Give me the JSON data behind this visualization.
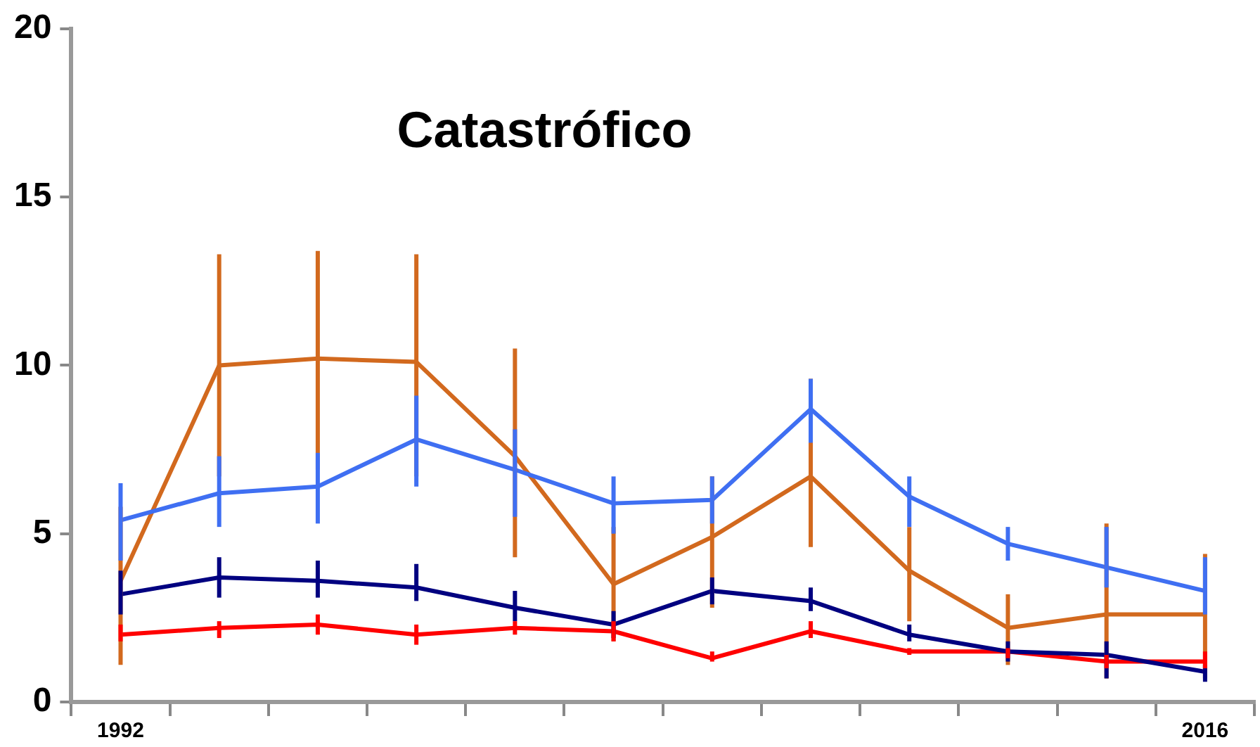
{
  "chart_data": {
    "type": "line",
    "title": "Catastrófico",
    "categories": [
      "1992",
      null,
      null,
      null,
      null,
      null,
      null,
      null,
      null,
      null,
      null,
      "2016"
    ],
    "series": [
      {
        "color": "#3f6ff2",
        "values": [
          5.4,
          6.2,
          6.4,
          7.8,
          6.9,
          5.9,
          6.0,
          8.7,
          6.1,
          4.7,
          4.0,
          3.3
        ],
        "errors": [
          [
            4.2,
            6.5
          ],
          [
            5.2,
            7.3
          ],
          [
            5.3,
            7.4
          ],
          [
            6.4,
            9.1
          ],
          [
            5.5,
            8.1
          ],
          [
            5.0,
            6.7
          ],
          [
            5.3,
            6.7
          ],
          [
            7.7,
            9.6
          ],
          [
            5.2,
            6.7
          ],
          [
            4.2,
            5.2
          ],
          [
            3.4,
            5.2
          ],
          [
            2.6,
            4.3
          ]
        ]
      },
      {
        "color": "#d2691e",
        "values": [
          3.6,
          10.0,
          10.2,
          10.1,
          7.3,
          3.5,
          4.9,
          6.7,
          3.9,
          2.2,
          2.6,
          2.6
        ],
        "errors": [
          [
            1.1,
            5.8
          ],
          [
            6.7,
            13.3
          ],
          [
            6.9,
            13.4
          ],
          [
            6.7,
            13.3
          ],
          [
            4.3,
            10.5
          ],
          [
            1.8,
            5.2
          ],
          [
            2.8,
            6.7
          ],
          [
            4.6,
            9.6
          ],
          [
            2.4,
            5.2
          ],
          [
            1.1,
            3.2
          ],
          [
            0.7,
            5.3
          ],
          [
            0.7,
            4.4
          ]
        ]
      },
      {
        "color": "#000080",
        "values": [
          3.2,
          3.7,
          3.6,
          3.4,
          2.8,
          2.3,
          3.3,
          3.0,
          2.0,
          1.5,
          1.4,
          0.9
        ],
        "errors": [
          [
            2.6,
            3.9
          ],
          [
            3.1,
            4.3
          ],
          [
            3.1,
            4.2
          ],
          [
            3.0,
            4.1
          ],
          [
            2.4,
            3.3
          ],
          [
            1.9,
            2.7
          ],
          [
            2.9,
            3.7
          ],
          [
            2.7,
            3.4
          ],
          [
            1.8,
            2.3
          ],
          [
            1.2,
            1.8
          ],
          [
            0.7,
            1.8
          ],
          [
            0.6,
            1.1
          ]
        ]
      },
      {
        "color": "#ff0000",
        "values": [
          2.0,
          2.2,
          2.3,
          2.0,
          2.2,
          2.1,
          1.3,
          2.1,
          1.5,
          1.5,
          1.2,
          1.2
        ],
        "errors": [
          [
            1.8,
            2.3
          ],
          [
            1.9,
            2.4
          ],
          [
            2.0,
            2.6
          ],
          [
            1.7,
            2.3
          ],
          [
            2.0,
            2.4
          ],
          [
            1.8,
            2.4
          ],
          [
            1.2,
            1.5
          ],
          [
            1.9,
            2.4
          ],
          [
            1.4,
            1.6
          ],
          [
            1.3,
            1.6
          ],
          [
            1.0,
            1.4
          ],
          [
            1.0,
            1.5
          ]
        ]
      }
    ],
    "ylim": [
      0,
      20
    ],
    "yticks": [
      0,
      5,
      10,
      15,
      20
    ],
    "grid": false,
    "legend": false,
    "marker": "none",
    "line_style": "solid"
  }
}
